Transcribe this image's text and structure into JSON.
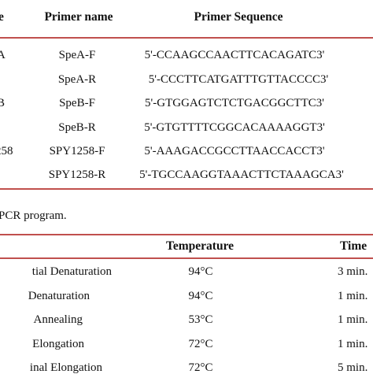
{
  "table1": {
    "headers": [
      "e",
      "Primer name",
      "Primer Sequence"
    ],
    "rows": [
      {
        "gene": "A",
        "name": "SpeA-F",
        "seq": "5'-CCAAGCCAACTTCACAGATC3'"
      },
      {
        "gene": "",
        "name": "SpeA-R",
        "seq": "5'-CCCTTCATGATTTGTTACCCC3'"
      },
      {
        "gene": "B",
        "name": "SpeB-F",
        "seq": "5'-GTGGAGTCTCTGACGGCTTC3'"
      },
      {
        "gene": "",
        "name": "SpeB-R",
        "seq": "5'-GTGTTTTCGGCACAAAAGGT3'"
      },
      {
        "gene": "258",
        "name": "SPY1258-F",
        "seq": "5'-AAAGACCGCCTTAACCACCT3'"
      },
      {
        "gene": "",
        "name": "SPY1258-R",
        "seq": "5'-TGCCAAGGTAAACTTCTAAAGCA3'"
      }
    ]
  },
  "caption": "PCR program.",
  "table2": {
    "headers": [
      "Temperature",
      "Time"
    ],
    "rows": [
      {
        "step": "tial Denaturation",
        "temp": "94°C",
        "time": "3 min."
      },
      {
        "step": "Denaturation",
        "temp": "94°C",
        "time": "1 min."
      },
      {
        "step": "Annealing",
        "temp": "53°C",
        "time": "1 min."
      },
      {
        "step": "Elongation",
        "temp": "72°C",
        "time": "1 min."
      },
      {
        "step": "inal Elongation",
        "temp": "72°C",
        "time": "5 min."
      }
    ]
  },
  "colors": {
    "rule": "#c0504d",
    "text": "#111111"
  }
}
